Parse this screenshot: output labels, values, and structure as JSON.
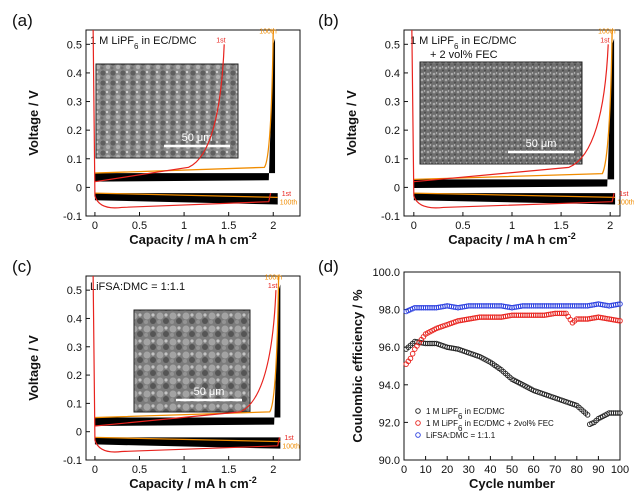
{
  "chart_data": [
    {
      "type": "line",
      "panel_label": "(a)",
      "annotation_lines": [
        "1 M LiPF₆ in EC/DMC"
      ],
      "xlabel": "Capacity  /  mA h cm⁻²",
      "ylabel": "Voltage  /  V",
      "xlim": [
        -0.1,
        2.3
      ],
      "ylim": [
        -0.1,
        0.55
      ],
      "xticks": [
        "0",
        "0.5",
        "1",
        "1.5",
        "2"
      ],
      "yticks": [
        "-0.1",
        "0",
        "0.1",
        "0.2",
        "0.3",
        "0.4",
        "0.5"
      ],
      "inset_scale_bar": "50 μm",
      "series": [
        {
          "name": "1st",
          "color": "#e8231e",
          "charge_end": 1.45,
          "discharge_end": 1.95
        },
        {
          "name": "100th",
          "color": "#f08c00",
          "charge_end": 2.0,
          "discharge_end": 2.05
        }
      ]
    },
    {
      "type": "line",
      "panel_label": "(b)",
      "annotation_lines": [
        "1 M LiPF₆ in EC/DMC",
        "+ 2 vol% FEC"
      ],
      "xlabel": "Capacity  /  mA h cm⁻²",
      "ylabel": "Voltage  /  V",
      "xlim": [
        -0.1,
        2.1
      ],
      "ylim": [
        -0.1,
        0.55
      ],
      "xticks": [
        "0",
        "0.5",
        "1",
        "1.5",
        "2"
      ],
      "yticks": [
        "-0.1",
        "0",
        "0.1",
        "0.2",
        "0.3",
        "0.4",
        "0.5"
      ],
      "inset_scale_bar": "50 μm",
      "series": [
        {
          "name": "1st",
          "color": "#e8231e",
          "charge_end": 1.98,
          "discharge_end": 2.02
        },
        {
          "name": "100th",
          "color": "#f08c00",
          "charge_end": 2.02,
          "discharge_end": 2.05
        }
      ]
    },
    {
      "type": "line",
      "panel_label": "(c)",
      "annotation_lines": [
        "LiFSA:DMC = 1:1.1"
      ],
      "xlabel": "Capacity  /  mA h cm⁻²",
      "ylabel": "Voltage  /  V",
      "xlim": [
        -0.1,
        2.3
      ],
      "ylim": [
        -0.1,
        0.55
      ],
      "xticks": [
        "0",
        "0.5",
        "1",
        "1.5",
        "2"
      ],
      "yticks": [
        "-0.1",
        "0",
        "0.1",
        "0.2",
        "0.3",
        "0.4",
        "0.5"
      ],
      "inset_scale_bar": "50 μm",
      "series": [
        {
          "name": "1st",
          "color": "#e8231e",
          "charge_end": 2.03,
          "discharge_end": 2.05
        },
        {
          "name": "100th",
          "color": "#f08c00",
          "charge_end": 2.06,
          "discharge_end": 2.08
        }
      ]
    },
    {
      "type": "scatter",
      "panel_label": "(d)",
      "xlabel": "Cycle number",
      "ylabel": "Coulombic efficiency  /  %",
      "xlim": [
        0,
        100
      ],
      "ylim": [
        90,
        100
      ],
      "xticks": [
        "0",
        "10",
        "20",
        "30",
        "40",
        "50",
        "60",
        "70",
        "80",
        "90",
        "100"
      ],
      "yticks": [
        "90.0",
        "92.0",
        "94.0",
        "96.0",
        "98.0",
        "100.0"
      ],
      "legend_position": "bottom-left",
      "series": [
        {
          "name": "1 M LiPF₆ in EC/DMC",
          "color": "#222222",
          "x": [
            1,
            5,
            10,
            15,
            20,
            25,
            30,
            35,
            40,
            45,
            50,
            55,
            60,
            65,
            70,
            75,
            80,
            85,
            86,
            88,
            90,
            95,
            100
          ],
          "y": [
            95.9,
            96.3,
            96.2,
            96.2,
            96.0,
            95.9,
            95.7,
            95.5,
            95.2,
            94.8,
            94.3,
            94.0,
            93.7,
            93.5,
            93.3,
            93.1,
            92.9,
            92.4,
            91.9,
            92.0,
            92.2,
            92.5,
            92.5
          ]
        },
        {
          "name": "1 M LiPF₆ in EC/DMC + 2vol% FEC",
          "color": "#e8231e",
          "x": [
            1,
            3,
            5,
            8,
            10,
            15,
            20,
            25,
            30,
            35,
            40,
            45,
            50,
            55,
            60,
            65,
            70,
            75,
            78,
            80,
            85,
            90,
            95,
            100
          ],
          "y": [
            95.1,
            95.4,
            95.9,
            96.4,
            96.7,
            97.0,
            97.2,
            97.4,
            97.5,
            97.6,
            97.6,
            97.6,
            97.7,
            97.7,
            97.7,
            97.7,
            97.8,
            97.8,
            97.3,
            97.5,
            97.5,
            97.6,
            97.5,
            97.4
          ]
        },
        {
          "name": "LiFSA:DMC = 1:1.1",
          "color": "#2b3fe0",
          "x": [
            1,
            3,
            5,
            10,
            15,
            20,
            25,
            30,
            35,
            40,
            45,
            50,
            55,
            60,
            65,
            70,
            75,
            80,
            85,
            90,
            95,
            100
          ],
          "y": [
            97.9,
            98.0,
            98.1,
            98.1,
            98.1,
            98.2,
            98.1,
            98.2,
            98.2,
            98.2,
            98.2,
            98.1,
            98.2,
            98.2,
            98.2,
            98.2,
            98.2,
            98.2,
            98.2,
            98.3,
            98.2,
            98.3
          ]
        }
      ]
    }
  ]
}
